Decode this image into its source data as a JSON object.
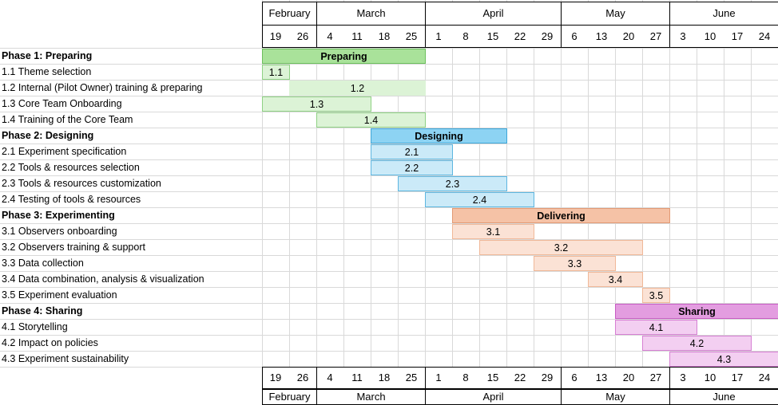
{
  "timeline": {
    "months_top": [
      "February",
      "March",
      "April",
      "May",
      "June"
    ],
    "days": [
      "19",
      "26",
      "4",
      "11",
      "18",
      "25",
      "1",
      "8",
      "15",
      "22",
      "29",
      "6",
      "13",
      "20",
      "27",
      "3",
      "10",
      "17",
      "24"
    ],
    "months_bottom": [
      "February",
      "March",
      "April",
      "May",
      "June"
    ]
  },
  "rows": [
    {
      "label": "Phase 1: Preparing",
      "phase": true,
      "bar": {
        "text": "Preparing",
        "start": 0,
        "end": 6,
        "color": "#a9e29a",
        "border": "#6cbf5c"
      }
    },
    {
      "label": "1.1 Theme selection",
      "phase": false,
      "bar": {
        "text": "1.1",
        "start": 0,
        "end": 1,
        "color": "#dcf3d6",
        "border": "#8fd184"
      }
    },
    {
      "label": "1.2 Internal (Pilot Owner) training & preparing",
      "phase": false,
      "bar": {
        "text": "1.2",
        "start": 1,
        "end": 6,
        "color": "#dcf3d6",
        "border": "#dcf3d6"
      }
    },
    {
      "label": "1.3 Core Team Onboarding",
      "phase": false,
      "bar": {
        "text": "1.3",
        "start": 0,
        "end": 4,
        "color": "#dcf3d6",
        "border": "#8fd184"
      }
    },
    {
      "label": "1.4 Training of the Core Team",
      "phase": false,
      "bar": {
        "text": "1.4",
        "start": 2,
        "end": 6,
        "color": "#dcf3d6",
        "border": "#8fd184"
      }
    },
    {
      "label": "Phase 2: Designing",
      "phase": true,
      "bar": {
        "text": "Designing",
        "start": 4,
        "end": 9,
        "color": "#8dd3f3",
        "border": "#3ea6d8"
      }
    },
    {
      "label": "2.1 Experiment specification",
      "phase": false,
      "bar": {
        "text": "2.1",
        "start": 4,
        "end": 7,
        "color": "#cbeaf8",
        "border": "#5db6e0"
      }
    },
    {
      "label": "2.2 Tools & resources selection",
      "phase": false,
      "bar": {
        "text": "2.2",
        "start": 4,
        "end": 7,
        "color": "#cbeaf8",
        "border": "#5db6e0"
      }
    },
    {
      "label": "2.3 Tools & resources customization",
      "phase": false,
      "bar": {
        "text": "2.3",
        "start": 5,
        "end": 9,
        "color": "#cbeaf8",
        "border": "#5db6e0"
      }
    },
    {
      "label": "2.4 Testing of tools & resources",
      "phase": false,
      "bar": {
        "text": "2.4",
        "start": 6,
        "end": 10,
        "color": "#cbeaf8",
        "border": "#5db6e0"
      }
    },
    {
      "label": "Phase 3: Experimenting",
      "phase": true,
      "bar": {
        "text": "Delivering",
        "start": 7,
        "end": 15,
        "color": "#f5c2a6",
        "border": "#e29a74"
      }
    },
    {
      "label": "3.1 Observers onboarding",
      "phase": false,
      "bar": {
        "text": "3.1",
        "start": 7,
        "end": 10,
        "color": "#fbe2d5",
        "border": "#f0b898"
      }
    },
    {
      "label": "3.2 Observers training & support",
      "phase": false,
      "bar": {
        "text": "3.2",
        "start": 8,
        "end": 14,
        "color": "#fbe2d5",
        "border": "#f0b898"
      }
    },
    {
      "label": "3.3 Data collection",
      "phase": false,
      "bar": {
        "text": "3.3",
        "start": 10,
        "end": 13,
        "color": "#fbe2d5",
        "border": "#f0b898"
      }
    },
    {
      "label": "3.4 Data combination, analysis & visualization",
      "phase": false,
      "bar": {
        "text": "3.4",
        "start": 12,
        "end": 14,
        "color": "#fbe2d5",
        "border": "#f0b898"
      }
    },
    {
      "label": "3.5 Experiment evaluation",
      "phase": false,
      "bar": {
        "text": "3.5",
        "start": 14,
        "end": 15,
        "color": "#fbe2d5",
        "border": "#f0b898"
      }
    },
    {
      "label": "Phase 4: Sharing",
      "phase": true,
      "bar": {
        "text": "Sharing",
        "start": 13,
        "end": 19,
        "color": "#e39de0",
        "border": "#c85cc4"
      }
    },
    {
      "label": "4.1 Storytelling",
      "phase": false,
      "bar": {
        "text": "4.1",
        "start": 13,
        "end": 16,
        "color": "#f3cff1",
        "border": "#d67fd3"
      }
    },
    {
      "label": "4.2 Impact on policies",
      "phase": false,
      "bar": {
        "text": "4.2",
        "start": 14,
        "end": 18,
        "color": "#f3cff1",
        "border": "#d67fd3"
      }
    },
    {
      "label": "4.3 Experiment sustainability",
      "phase": false,
      "bar": {
        "text": "4.3",
        "start": 15,
        "end": 19,
        "color": "#f3cff1",
        "border": "#d67fd3"
      }
    }
  ]
}
